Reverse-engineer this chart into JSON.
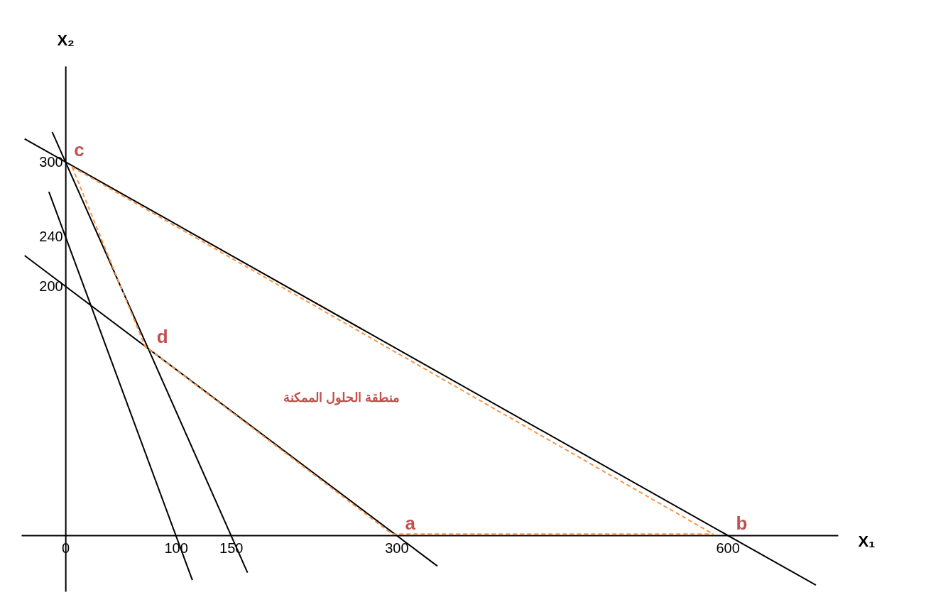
{
  "chart_data": {
    "type": "line",
    "xlabel": "X₁",
    "ylabel": "X₂",
    "xlim": [
      -40,
      700
    ],
    "ylim": [
      -45,
      377
    ],
    "xticks": [
      0,
      100,
      150,
      300,
      600
    ],
    "yticks": [
      200,
      240,
      300
    ],
    "marker": "none",
    "series": [
      {
        "color": "#000000",
        "line_style": "solid",
        "x": [
          -37,
          680
        ],
        "values": [
          318.5,
          -40
        ]
      },
      {
        "color": "#000000",
        "line_style": "solid",
        "x": [
          -37,
          337
        ],
        "values": [
          224.7,
          -24.7
        ]
      },
      {
        "color": "#000000",
        "line_style": "solid",
        "x": [
          -15,
          115
        ],
        "values": [
          276,
          -36
        ]
      },
      {
        "color": "#000000",
        "line_style": "solid",
        "x": [
          -12,
          165
        ],
        "values": [
          324,
          -30
        ]
      },
      {
        "color": "#f79646",
        "line_style": "dashed",
        "x": [
          6,
          587
        ],
        "values": [
          296,
          1
        ]
      },
      {
        "color": "#f79646",
        "line_style": "dashed",
        "x": [
          6,
          72,
          296,
          587
        ],
        "values": [
          296,
          152,
          1,
          1
        ]
      }
    ],
    "annotations": [
      {
        "text": "a",
        "x": 300,
        "y": 0
      },
      {
        "text": "b",
        "x": 600,
        "y": 0
      },
      {
        "text": "c",
        "x": 0,
        "y": 300
      },
      {
        "text": "d",
        "x": 75,
        "y": 150
      },
      "منطقة الحلول الممكنة"
    ]
  }
}
